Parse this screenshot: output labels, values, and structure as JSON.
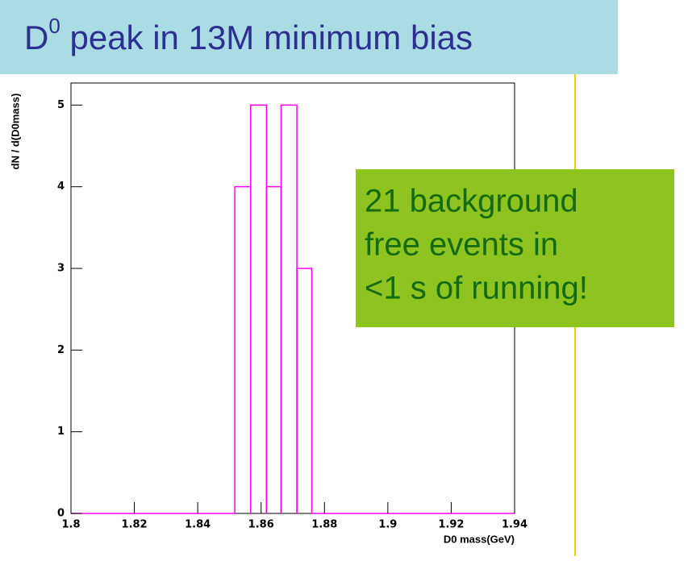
{
  "chart_data": {
    "type": "histogram",
    "title_main": "D",
    "title_sup": "0",
    "title_rest": " peak in 13M minimum bias",
    "x_label": "D0 mass(GeV)",
    "y_label": "dN / d(D0mass)",
    "bins": [
      1.8,
      1.8517,
      1.8567,
      1.8617,
      1.8663,
      1.8713,
      1.876,
      1.94
    ],
    "values": [
      0,
      4,
      5,
      4,
      5,
      3,
      0
    ],
    "color": "#ff00ff",
    "xlim": [
      1.8,
      1.94
    ],
    "ylim": [
      0,
      5.27
    ],
    "xticks": [
      1.8,
      1.82,
      1.84,
      1.86,
      1.88,
      1.9,
      1.92,
      1.94
    ],
    "yticks": [
      0,
      1,
      2,
      3,
      4,
      5
    ],
    "annotation": [
      "21 background",
      "free events in",
      "<1 s of running!"
    ]
  }
}
